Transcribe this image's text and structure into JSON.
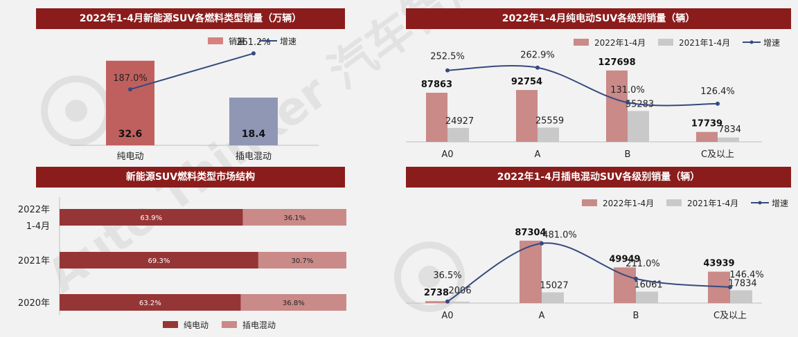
{
  "chart_data": [
    {
      "type": "bar",
      "title": "2022年1-4月新能源SUV各燃料类型销量（万辆）",
      "categories": [
        "纯电动",
        "插电混动"
      ],
      "series": [
        {
          "name": "销量",
          "values": [
            32.6,
            18.4
          ],
          "colors": [
            "#c0605e",
            "#8f97b5"
          ]
        },
        {
          "name": "增速",
          "type": "line",
          "values": [
            187.0,
            261.2
          ],
          "labels": [
            "187.0%",
            "261.2%"
          ],
          "color": "#35497e"
        }
      ]
    },
    {
      "type": "bar",
      "title": "2022年1-4月纯电动SUV各级别销量（辆）",
      "categories": [
        "A0",
        "A",
        "B",
        "C及以上"
      ],
      "series": [
        {
          "name": "2022年1-4月",
          "values": [
            87863,
            92754,
            127698,
            17739
          ],
          "color": "#c98a88"
        },
        {
          "name": "2021年1-4月",
          "values": [
            24927,
            25559,
            55283,
            7834
          ],
          "color": "#c9c9c9"
        },
        {
          "name": "增速",
          "type": "line",
          "values": [
            252.5,
            262.9,
            131.0,
            126.4
          ],
          "labels": [
            "252.5%",
            "262.9%",
            "131.0%",
            "126.4%"
          ],
          "color": "#35497e"
        }
      ]
    },
    {
      "type": "bar",
      "orientation": "horizontal",
      "stacked": true,
      "title": "新能源SUV燃料类型市场结构",
      "categories": [
        "2022年\n1-4月",
        "2021年",
        "2020年"
      ],
      "series": [
        {
          "name": "纯电动",
          "values": [
            63.9,
            69.3,
            63.2
          ],
          "labels": [
            "63.9%",
            "69.3%",
            "63.2%"
          ],
          "color": "#963535"
        },
        {
          "name": "插电混动",
          "values": [
            36.1,
            30.7,
            36.8
          ],
          "labels": [
            "36.1%",
            "30.7%",
            "36.8%"
          ],
          "color": "#c98a88"
        }
      ]
    },
    {
      "type": "bar",
      "title": "2022年1-4月插电混动SUV各级别销量（辆）",
      "categories": [
        "A0",
        "A",
        "B",
        "C及以上"
      ],
      "series": [
        {
          "name": "2022年1-4月",
          "values": [
            2738,
            87304,
            49949,
            43939
          ],
          "color": "#c98a88"
        },
        {
          "name": "2021年1-4月",
          "values": [
            2006,
            15027,
            16061,
            17834
          ],
          "color": "#c9c9c9"
        },
        {
          "name": "增速",
          "type": "line",
          "values": [
            36.5,
            481.0,
            211.0,
            146.4
          ],
          "labels": [
            "36.5%",
            "481.0%",
            "211.0%",
            "146.4%"
          ],
          "color": "#35497e"
        }
      ]
    }
  ],
  "watermark": "Auto Thinker 汽车智库"
}
